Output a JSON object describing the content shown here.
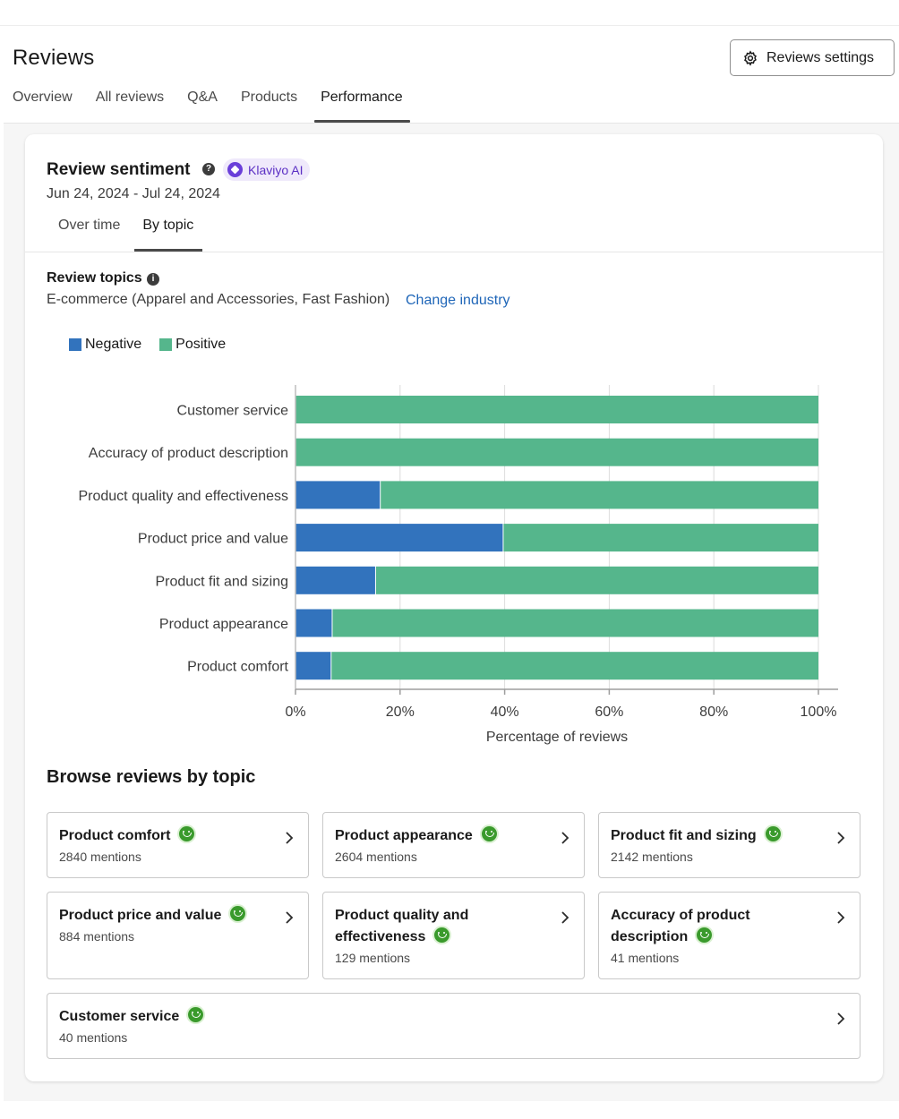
{
  "header": {
    "title": "Reviews",
    "settings_label": "Reviews settings",
    "tabs": [
      {
        "label": "Overview"
      },
      {
        "label": "All reviews"
      },
      {
        "label": "Q&A"
      },
      {
        "label": "Products"
      },
      {
        "label": "Performance"
      }
    ],
    "active_tab": "Performance"
  },
  "sentiment": {
    "title": "Review sentiment",
    "badge": "Klaviyo AI",
    "date_range": "Jun 24, 2024 - Jul 24, 2024",
    "subtabs": [
      {
        "label": "Over time"
      },
      {
        "label": "By topic"
      }
    ],
    "active_subtab": "By topic"
  },
  "topics": {
    "title": "Review topics",
    "industry": "E-commerce (Apparel and Accessories, Fast Fashion)",
    "change_link": "Change industry"
  },
  "chart_data": {
    "type": "bar",
    "orientation": "horizontal",
    "stacked": true,
    "categories": [
      "Customer service",
      "Accuracy of product description",
      "Product quality and effectiveness",
      "Product price and value",
      "Product fit and sizing",
      "Product appearance",
      "Product comfort"
    ],
    "series": [
      {
        "name": "Negative",
        "color": "#3273bd",
        "values": [
          0,
          0,
          16.3,
          39.8,
          15.4,
          7.1,
          6.9
        ]
      },
      {
        "name": "Positive",
        "color": "#55b68c",
        "values": [
          100,
          100,
          83.7,
          60.2,
          84.6,
          92.9,
          93.1
        ]
      }
    ],
    "xlim": [
      0,
      100
    ],
    "x_ticks": [
      "0%",
      "20%",
      "40%",
      "60%",
      "80%",
      "100%"
    ],
    "xlabel": "Percentage of reviews",
    "grid": true,
    "legend": "top-left"
  },
  "browse": {
    "title": "Browse reviews by topic",
    "cards": [
      {
        "name_lines": [
          "Product comfort"
        ],
        "mentions": "2840 mentions"
      },
      {
        "name_lines": [
          "Product appearance"
        ],
        "mentions": "2604 mentions"
      },
      {
        "name_lines": [
          "Product fit and sizing"
        ],
        "mentions": "2142 mentions"
      },
      {
        "name_lines": [
          "Product price and value"
        ],
        "mentions": "884 mentions"
      },
      {
        "name_lines": [
          "Product quality and",
          "effectiveness"
        ],
        "mentions": "129 mentions"
      },
      {
        "name_lines": [
          "Accuracy of product",
          "description"
        ],
        "mentions": "41 mentions"
      },
      {
        "name_lines": [
          "Customer service"
        ],
        "mentions": "40 mentions"
      }
    ]
  },
  "icons": {
    "settings": "gear-icon",
    "help": "help-circle-icon",
    "ai": "sparkle-icon",
    "sentiment": "smiley-icon",
    "chevron": "chevron-right-icon"
  }
}
